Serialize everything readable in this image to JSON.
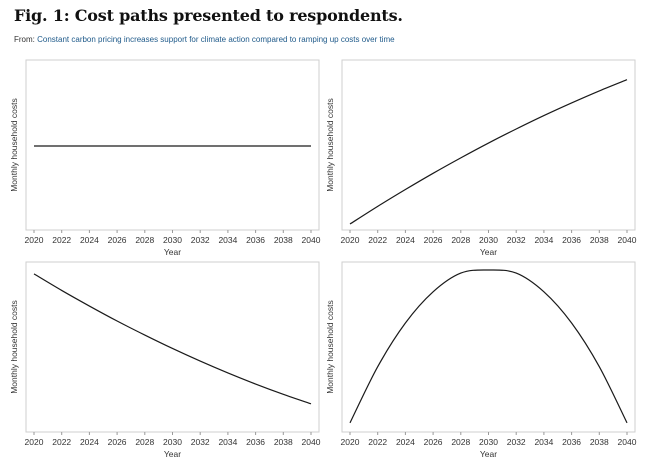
{
  "figure": {
    "title": "Fig. 1: Cost paths presented to respondents.",
    "from_prefix": "From:",
    "from_link": "Constant carbon pricing increases support for climate action compared to ramping up costs over time"
  },
  "chart_data": [
    {
      "type": "line",
      "panel": "top-left",
      "xlabel": "Year",
      "ylabel": "Monthly household costs",
      "xlim": [
        2020,
        2040
      ],
      "ylim": [
        0,
        1
      ],
      "xticks": [
        2020,
        2022,
        2024,
        2026,
        2028,
        2030,
        2032,
        2034,
        2036,
        2038,
        2040
      ],
      "yticks": [],
      "grid": false,
      "series": [
        {
          "x": [
            2020,
            2025,
            2030,
            2035,
            2040
          ],
          "y": [
            0.5,
            0.5,
            0.5,
            0.5,
            0.5
          ]
        }
      ]
    },
    {
      "type": "line",
      "panel": "top-right",
      "xlabel": "Year",
      "ylabel": "Monthly household costs",
      "xlim": [
        2020,
        2040
      ],
      "ylim": [
        0,
        1
      ],
      "xticks": [
        2020,
        2022,
        2024,
        2026,
        2028,
        2030,
        2032,
        2034,
        2036,
        2038,
        2040
      ],
      "yticks": [],
      "grid": false,
      "series": [
        {
          "x": [
            2020,
            2022,
            2024,
            2026,
            2028,
            2030,
            2032,
            2034,
            2036,
            2038,
            2040
          ],
          "y": [
            0.0,
            0.113,
            0.221,
            0.325,
            0.424,
            0.519,
            0.609,
            0.695,
            0.776,
            0.853,
            0.925
          ]
        }
      ]
    },
    {
      "type": "line",
      "panel": "bottom-left",
      "xlabel": "Year",
      "ylabel": "Monthly household costs",
      "xlim": [
        2020,
        2040
      ],
      "ylim": [
        0,
        1
      ],
      "xticks": [
        2020,
        2022,
        2024,
        2026,
        2028,
        2030,
        2032,
        2034,
        2036,
        2038,
        2040
      ],
      "yticks": [],
      "grid": false,
      "series": [
        {
          "x": [
            2020,
            2022,
            2024,
            2026,
            2028,
            2030,
            2032,
            2034,
            2036,
            2038,
            2040
          ],
          "y": [
            0.975,
            0.869,
            0.769,
            0.673,
            0.583,
            0.497,
            0.416,
            0.34,
            0.269,
            0.203,
            0.142
          ]
        }
      ]
    },
    {
      "type": "line",
      "panel": "bottom-right",
      "xlabel": "Year",
      "ylabel": "Monthly household costs",
      "xlim": [
        2020,
        2040
      ],
      "ylim": [
        0,
        1
      ],
      "xticks": [
        2020,
        2022,
        2024,
        2026,
        2028,
        2030,
        2032,
        2034,
        2036,
        2038,
        2040
      ],
      "yticks": [],
      "grid": false,
      "series": [
        {
          "x": [
            2020,
            2022,
            2024,
            2026,
            2028,
            2030,
            2032,
            2034,
            2036,
            2038,
            2040
          ],
          "y": [
            0.02,
            0.38,
            0.66,
            0.86,
            0.98,
            1.0,
            0.98,
            0.86,
            0.66,
            0.38,
            0.02
          ]
        }
      ]
    }
  ]
}
